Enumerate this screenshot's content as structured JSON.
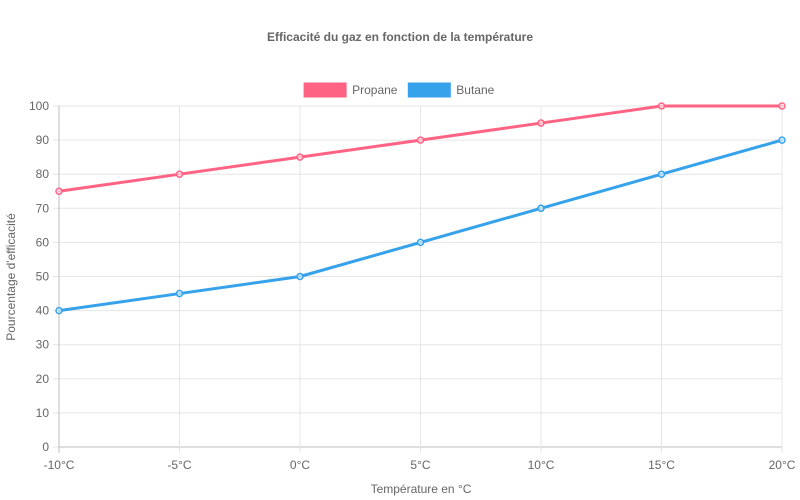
{
  "chart_data": {
    "type": "line",
    "title": "Efficacité du gaz en fonction de la température",
    "xlabel": "Température en °C",
    "ylabel": "Pourcentage d'efficacité",
    "categories": [
      "-10°C",
      "-5°C",
      "0°C",
      "5°C",
      "10°C",
      "15°C",
      "20°C"
    ],
    "ylim": [
      0,
      100
    ],
    "yticks": [
      "0",
      "10",
      "20",
      "30",
      "40",
      "50",
      "60",
      "70",
      "80",
      "90",
      "100"
    ],
    "grid": true,
    "legend_position": "top",
    "series": [
      {
        "name": "Propane",
        "color": "#ff6384",
        "values": [
          75,
          80,
          85,
          90,
          95,
          100,
          100
        ]
      },
      {
        "name": "Butane",
        "color": "#36a2eb",
        "values": [
          40,
          45,
          50,
          60,
          70,
          80,
          90
        ]
      }
    ]
  }
}
